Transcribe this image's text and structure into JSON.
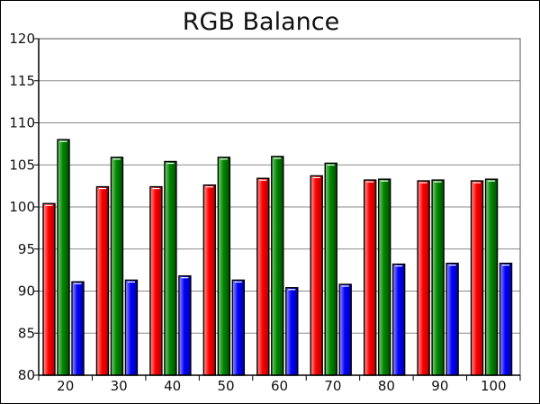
{
  "chart_data": {
    "type": "bar",
    "title": "RGB Balance",
    "xlabel": "",
    "ylabel": "",
    "categories": [
      "20",
      "30",
      "40",
      "50",
      "60",
      "70",
      "80",
      "90",
      "100"
    ],
    "series": [
      {
        "color": "#ff0000",
        "values": [
          100.4,
          102.4,
          102.4,
          102.6,
          103.4,
          103.7,
          103.2,
          103.1,
          103.1
        ]
      },
      {
        "color": "#00a000",
        "values": [
          108.0,
          105.9,
          105.4,
          105.9,
          106.0,
          105.2,
          103.3,
          103.2,
          103.3
        ]
      },
      {
        "color": "#0000ff",
        "values": [
          91.1,
          91.3,
          91.8,
          91.3,
          90.4,
          90.8,
          93.2,
          93.3,
          93.3
        ]
      }
    ],
    "ylim": [
      80,
      120
    ],
    "yticks": [
      "80",
      "85",
      "90",
      "95",
      "100",
      "105",
      "110",
      "115",
      "120"
    ],
    "grid": true,
    "legend": "none"
  }
}
